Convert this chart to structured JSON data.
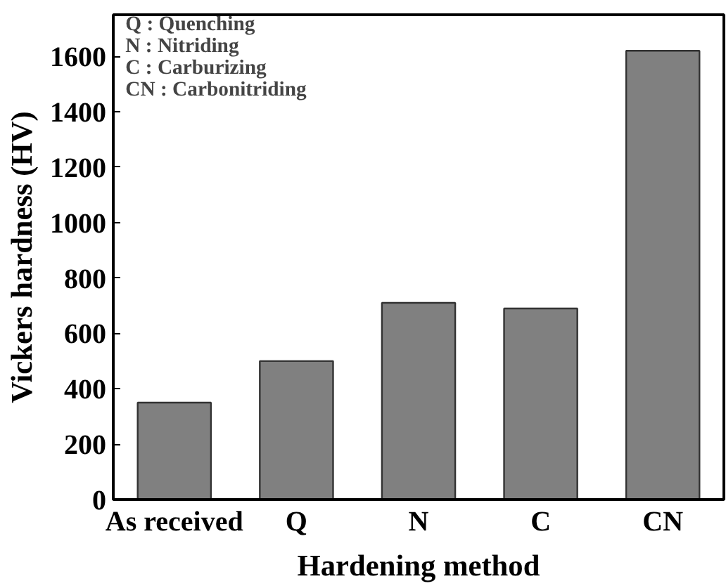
{
  "chart_data": {
    "type": "bar",
    "xlabel": "Hardening method",
    "ylabel": "Vickers hardness (HV)",
    "categories": [
      "As received",
      "Q",
      "N",
      "C",
      "CN"
    ],
    "values": [
      350,
      500,
      710,
      690,
      1620
    ],
    "color": "#808080",
    "ylim": [
      0,
      1750
    ],
    "yticks": [
      0,
      200,
      400,
      600,
      800,
      1000,
      1200,
      1400,
      1600
    ],
    "grid": false,
    "annotations": [
      "Q : Quenching",
      "N : Nitriding",
      "C : Carburizing",
      "CN : Carbonitriding"
    ]
  }
}
